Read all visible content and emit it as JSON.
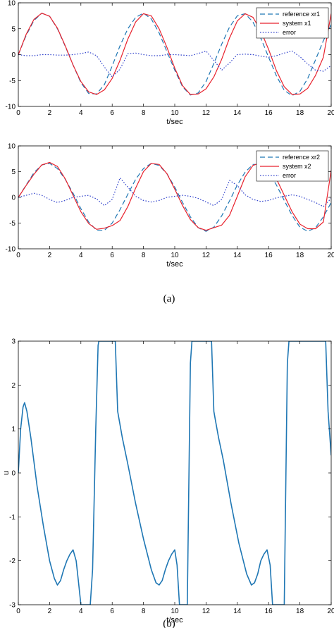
{
  "captions": [
    "(a)",
    "(b)"
  ],
  "chart_data": [
    {
      "type": "line",
      "xlabel": "t/sec",
      "ylabel": "",
      "xlim": [
        0,
        20
      ],
      "ylim": [
        -10,
        10
      ],
      "xticks": [
        0,
        2,
        4,
        6,
        8,
        10,
        12,
        14,
        16,
        18,
        20
      ],
      "yticks": [
        -10,
        -5,
        0,
        5,
        10
      ],
      "grid": false,
      "legend_position": "top-right",
      "series": [
        {
          "name": "reference xr1",
          "color": "#1f77b4",
          "style": "dashed",
          "x": [
            0,
            0.5,
            1,
            1.5,
            2,
            2.5,
            3,
            3.5,
            4,
            4.5,
            5,
            5.5,
            6,
            6.5,
            7,
            7.5,
            8,
            8.5,
            9,
            9.5,
            10,
            10.5,
            11,
            11.5,
            12,
            12.5,
            13,
            13.5,
            14,
            14.5,
            15,
            15.5,
            16,
            16.5,
            17,
            17.5,
            18,
            18.5,
            19,
            19.5,
            20
          ],
          "y": [
            0,
            3.7,
            6.6,
            8.0,
            7.4,
            5.0,
            1.6,
            -2.0,
            -5.4,
            -7.5,
            -7.6,
            -5.8,
            -2.2,
            1.7,
            5.0,
            7.2,
            8.0,
            6.9,
            4.2,
            0.6,
            -3.0,
            -6.2,
            -7.8,
            -7.4,
            -5.2,
            -1.7,
            2.0,
            5.3,
            7.5,
            7.9,
            6.3,
            3.2,
            -0.5,
            -4.1,
            -6.9,
            -7.9,
            -7.1,
            -4.6,
            -1.0,
            2.7,
            5.8
          ]
        },
        {
          "name": "system x1",
          "color": "#e8222d",
          "style": "solid",
          "x": [
            0,
            0.5,
            1,
            1.5,
            2,
            2.5,
            3,
            3.5,
            4,
            4.5,
            5,
            5.5,
            6,
            6.5,
            7,
            7.5,
            8,
            8.5,
            9,
            9.5,
            10,
            10.5,
            11,
            11.5,
            12,
            12.5,
            13,
            13.5,
            14,
            14.5,
            15,
            15.5,
            16,
            16.5,
            17,
            17.5,
            18,
            18.5,
            19,
            19.5,
            20
          ],
          "y": [
            0,
            3.9,
            6.8,
            8.0,
            7.4,
            5.1,
            1.7,
            -2.0,
            -5.2,
            -7.2,
            -7.7,
            -6.8,
            -4.6,
            -1.1,
            3.0,
            6.3,
            7.9,
            7.5,
            5.0,
            1.4,
            -2.6,
            -6.0,
            -7.7,
            -7.6,
            -6.6,
            -4.3,
            -0.9,
            3.2,
            6.5,
            7.9,
            7.2,
            4.6,
            1.0,
            -3.1,
            -6.2,
            -7.7,
            -7.6,
            -6.5,
            -4.0,
            -0.5,
            7.9
          ]
        },
        {
          "name": "error",
          "color": "#3344cc",
          "style": "dotted",
          "x": [
            0,
            0.5,
            1,
            1.5,
            2,
            2.5,
            3,
            3.5,
            4,
            4.5,
            5,
            5.5,
            6,
            6.5,
            7,
            7.5,
            8,
            8.5,
            9,
            9.5,
            10,
            10.5,
            11,
            11.5,
            12,
            12.5,
            13,
            13.5,
            14,
            14.5,
            15,
            15.5,
            16,
            16.5,
            17,
            17.5,
            18,
            18.5,
            19,
            19.5,
            20
          ],
          "y": [
            0,
            -0.2,
            -0.2,
            0,
            0,
            -0.1,
            -0.1,
            0,
            0.2,
            0.5,
            -0.2,
            -2.4,
            -4.3,
            -2.8,
            0.2,
            0.3,
            0,
            -0.2,
            -0.2,
            0,
            0,
            -0.1,
            -0.2,
            0.2,
            0.7,
            -1.1,
            -3.0,
            -1.6,
            0,
            0.1,
            0,
            -0.3,
            -0.5,
            -0.2,
            0.3,
            0.7,
            -0.4,
            -1.8,
            -3.0,
            -3.2,
            -2.1
          ]
        }
      ]
    },
    {
      "type": "line",
      "xlabel": "t/sec",
      "ylabel": "",
      "xlim": [
        0,
        20
      ],
      "ylim": [
        -10,
        10
      ],
      "xticks": [
        0,
        2,
        4,
        6,
        8,
        10,
        12,
        14,
        16,
        18,
        20
      ],
      "yticks": [
        -10,
        -5,
        0,
        5,
        10
      ],
      "grid": false,
      "legend_position": "top-right",
      "series": [
        {
          "name": "reference xr2",
          "color": "#1f77b4",
          "style": "dashed",
          "x": [
            0,
            0.5,
            1,
            1.5,
            2,
            2.5,
            3,
            3.5,
            4,
            4.5,
            5,
            5.5,
            6,
            6.5,
            7,
            7.5,
            8,
            8.5,
            9,
            9.5,
            10,
            10.5,
            11,
            11.5,
            12,
            12.5,
            13,
            13.5,
            14,
            14.5,
            15,
            15.5,
            16,
            16.5,
            17,
            17.5,
            18,
            18.5,
            19,
            19.5,
            20
          ],
          "y": [
            0,
            2.4,
            4.8,
            6.3,
            6.6,
            5.6,
            3.5,
            0.8,
            -2.2,
            -4.8,
            -6.4,
            -6.4,
            -5.0,
            -2.4,
            0.6,
            3.5,
            5.6,
            6.6,
            6.2,
            4.6,
            2.0,
            -1.0,
            -3.8,
            -5.9,
            -6.6,
            -5.8,
            -3.6,
            -0.7,
            2.4,
            4.9,
            6.4,
            6.4,
            5.0,
            2.4,
            -0.6,
            -3.5,
            -5.8,
            -6.6,
            -5.9,
            -3.8,
            -1.0
          ]
        },
        {
          "name": "system x2",
          "color": "#e8222d",
          "style": "solid",
          "x": [
            0,
            0.5,
            1,
            1.5,
            2,
            2.5,
            3,
            3.5,
            4,
            4.5,
            5,
            5.5,
            6,
            6.5,
            7,
            7.5,
            8,
            8.5,
            9,
            9.5,
            10,
            10.5,
            11,
            11.5,
            12,
            12.5,
            13,
            13.5,
            14,
            14.5,
            15,
            15.5,
            16,
            16.5,
            17,
            17.5,
            18,
            18.5,
            19,
            19.5,
            20
          ],
          "y": [
            0,
            2.3,
            4.5,
            6.3,
            6.8,
            6.0,
            3.6,
            0.4,
            -2.8,
            -5.1,
            -6.2,
            -6.0,
            -5.5,
            -4.5,
            -1.8,
            1.8,
            5.0,
            6.6,
            6.4,
            4.6,
            1.6,
            -1.6,
            -4.3,
            -5.9,
            -6.4,
            -5.9,
            -5.4,
            -3.5,
            0.2,
            4.0,
            6.2,
            6.7,
            5.8,
            3.6,
            0.4,
            -2.8,
            -5.2,
            -6.1,
            -6.1,
            -4.8,
            5.3
          ]
        },
        {
          "name": "error",
          "color": "#3344cc",
          "style": "dotted",
          "x": [
            0,
            0.5,
            1,
            1.5,
            2,
            2.5,
            3,
            3.5,
            4,
            4.5,
            5,
            5.5,
            6,
            6.5,
            7,
            7.5,
            8,
            8.5,
            9,
            9.5,
            10,
            10.5,
            11,
            11.5,
            12,
            12.5,
            13,
            13.5,
            14,
            14.5,
            15,
            15.5,
            16,
            16.5,
            17,
            17.5,
            18,
            18.5,
            19,
            19.5,
            20
          ],
          "y": [
            0,
            0.4,
            0.8,
            0.4,
            -0.4,
            -1.0,
            -0.6,
            0,
            0.2,
            0.4,
            -0.3,
            -1.6,
            -0.4,
            3.8,
            2.0,
            0.2,
            -0.6,
            -0.9,
            -0.6,
            0,
            0.2,
            0.4,
            0.2,
            -0.2,
            -0.9,
            -1.6,
            -0.4,
            3.3,
            2.3,
            0.5,
            -0.4,
            -0.8,
            -0.6,
            -0.1,
            0.2,
            0.5,
            0.2,
            -0.4,
            -1.0,
            -1.8,
            -0.2
          ]
        }
      ]
    },
    {
      "type": "line",
      "xlabel": "t/sec",
      "ylabel": "u",
      "xlim": [
        0,
        20
      ],
      "ylim": [
        -3,
        3
      ],
      "xticks": [
        0,
        2,
        4,
        6,
        8,
        10,
        12,
        14,
        16,
        18,
        20
      ],
      "yticks": [
        -3,
        -2,
        -1,
        0,
        1,
        2,
        3
      ],
      "grid": false,
      "series": [
        {
          "color": "#1f77b4",
          "style": "solid",
          "x": [
            0,
            0.15,
            0.3,
            0.4,
            0.55,
            0.8,
            1.2,
            1.6,
            2.0,
            2.3,
            2.5,
            2.7,
            2.9,
            3.1,
            3.3,
            3.5,
            3.7,
            3.85,
            4.0,
            4.3,
            4.6,
            4.75,
            4.95,
            5.1,
            5.15,
            6.2,
            6.35,
            6.45,
            6.65,
            7.0,
            7.5,
            8.0,
            8.5,
            8.8,
            9.0,
            9.2,
            9.4,
            9.6,
            9.8,
            10.0,
            10.15,
            10.3,
            10.6,
            10.8,
            11.0,
            11.1,
            12.35,
            12.5,
            12.6,
            12.8,
            13.1,
            13.6,
            14.1,
            14.6,
            14.9,
            15.1,
            15.3,
            15.5,
            15.7,
            15.9,
            16.1,
            16.25,
            16.4,
            16.7,
            17.0,
            17.2,
            17.3,
            19.65,
            19.8,
            19.9,
            20.0
          ],
          "y": [
            0,
            1.0,
            1.5,
            1.6,
            1.4,
            0.8,
            -0.3,
            -1.2,
            -2.0,
            -2.4,
            -2.55,
            -2.45,
            -2.2,
            -2.0,
            -1.85,
            -1.75,
            -2.0,
            -2.5,
            -3.0,
            -3.0,
            -3.0,
            -2.2,
            1.0,
            2.9,
            3.0,
            3.0,
            1.4,
            1.2,
            0.8,
            0.2,
            -0.7,
            -1.5,
            -2.2,
            -2.5,
            -2.55,
            -2.45,
            -2.2,
            -2.0,
            -1.85,
            -1.75,
            -2.1,
            -3.0,
            -3.0,
            -3.0,
            2.5,
            3.0,
            3.0,
            1.4,
            1.2,
            0.8,
            0.3,
            -0.7,
            -1.6,
            -2.3,
            -2.55,
            -2.5,
            -2.3,
            -2.0,
            -1.85,
            -1.75,
            -2.1,
            -3.0,
            -3.0,
            -3.0,
            -3.0,
            2.5,
            3.0,
            3.0,
            1.4,
            0.9,
            0.4
          ]
        }
      ]
    }
  ]
}
